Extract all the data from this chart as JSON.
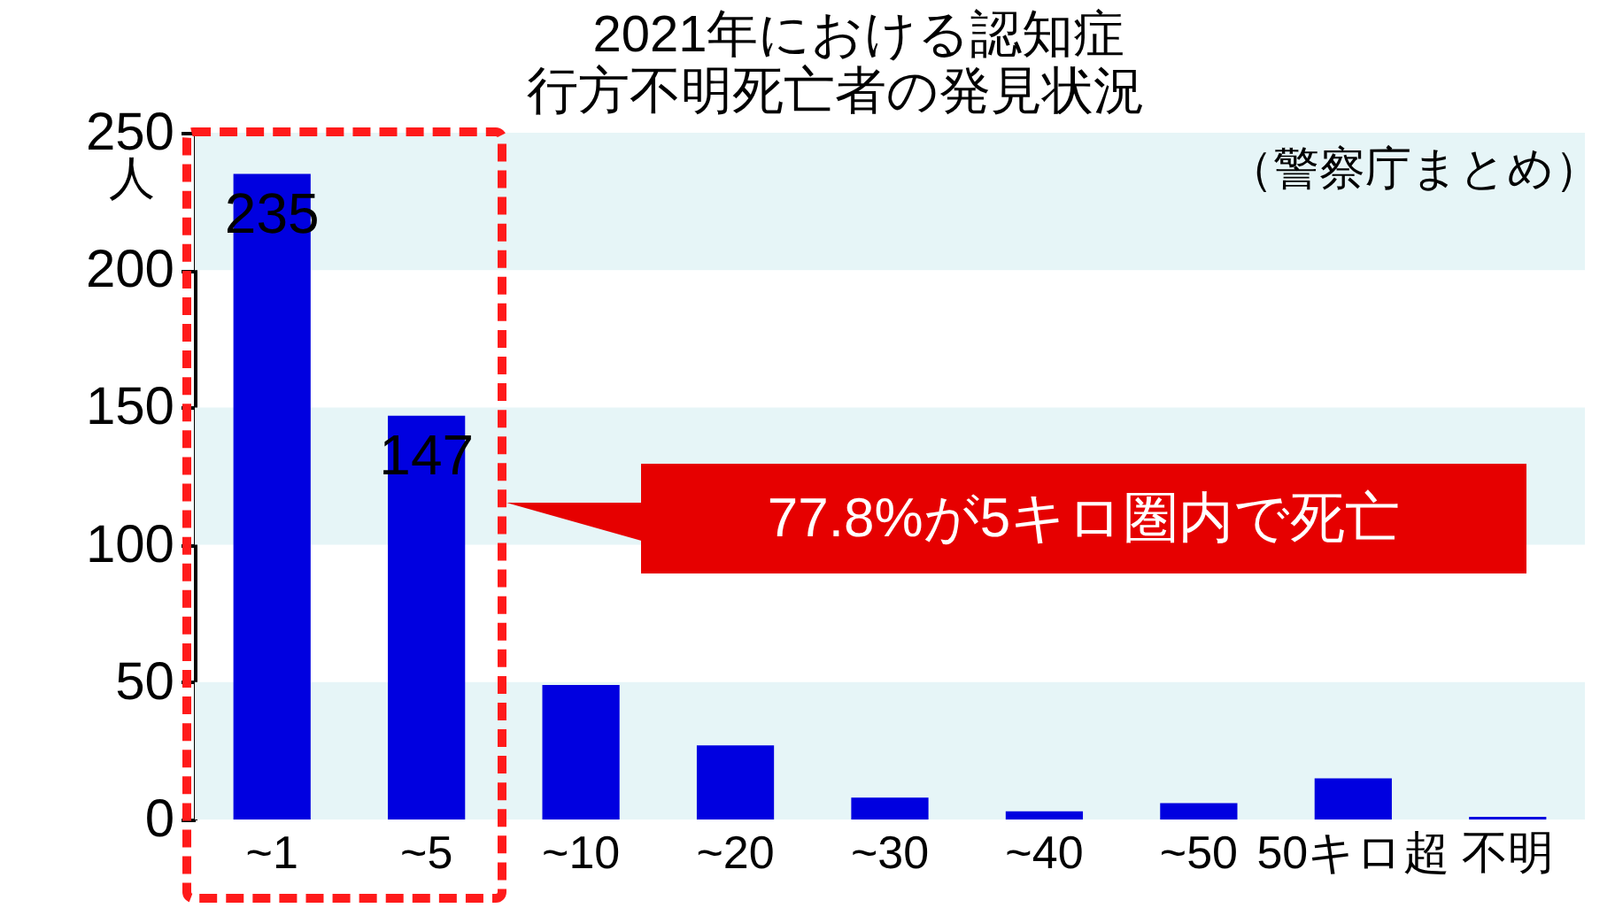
{
  "chart_data": {
    "type": "bar",
    "title": "2021年における認知症行方不明死亡者の発見状況",
    "ylabel": "人",
    "categories": [
      "~1",
      "~5",
      "~10",
      "~20",
      "~30",
      "~40",
      "~50",
      "50キロ超",
      "不明"
    ],
    "values": [
      235,
      147,
      49,
      27,
      8,
      3,
      6,
      15,
      1
    ],
    "value_labels": [
      "235",
      "147",
      null,
      null,
      null,
      null,
      null,
      null,
      null
    ],
    "color": "#0000e0",
    "ylim": [
      0,
      250
    ],
    "yticks": [
      0,
      50,
      100,
      150,
      200,
      250
    ],
    "bands": [
      {
        "axis": "y",
        "from": 0,
        "to": 50,
        "color": "#e6f5f7"
      },
      {
        "axis": "y",
        "from": 100,
        "to": 150,
        "color": "#e6f5f7"
      },
      {
        "axis": "y",
        "from": 200,
        "to": 250,
        "color": "#e6f5f7"
      }
    ],
    "annotations": [
      "（警察庁まとめ）",
      "77.8%が5キロ圏内で死亡"
    ]
  }
}
